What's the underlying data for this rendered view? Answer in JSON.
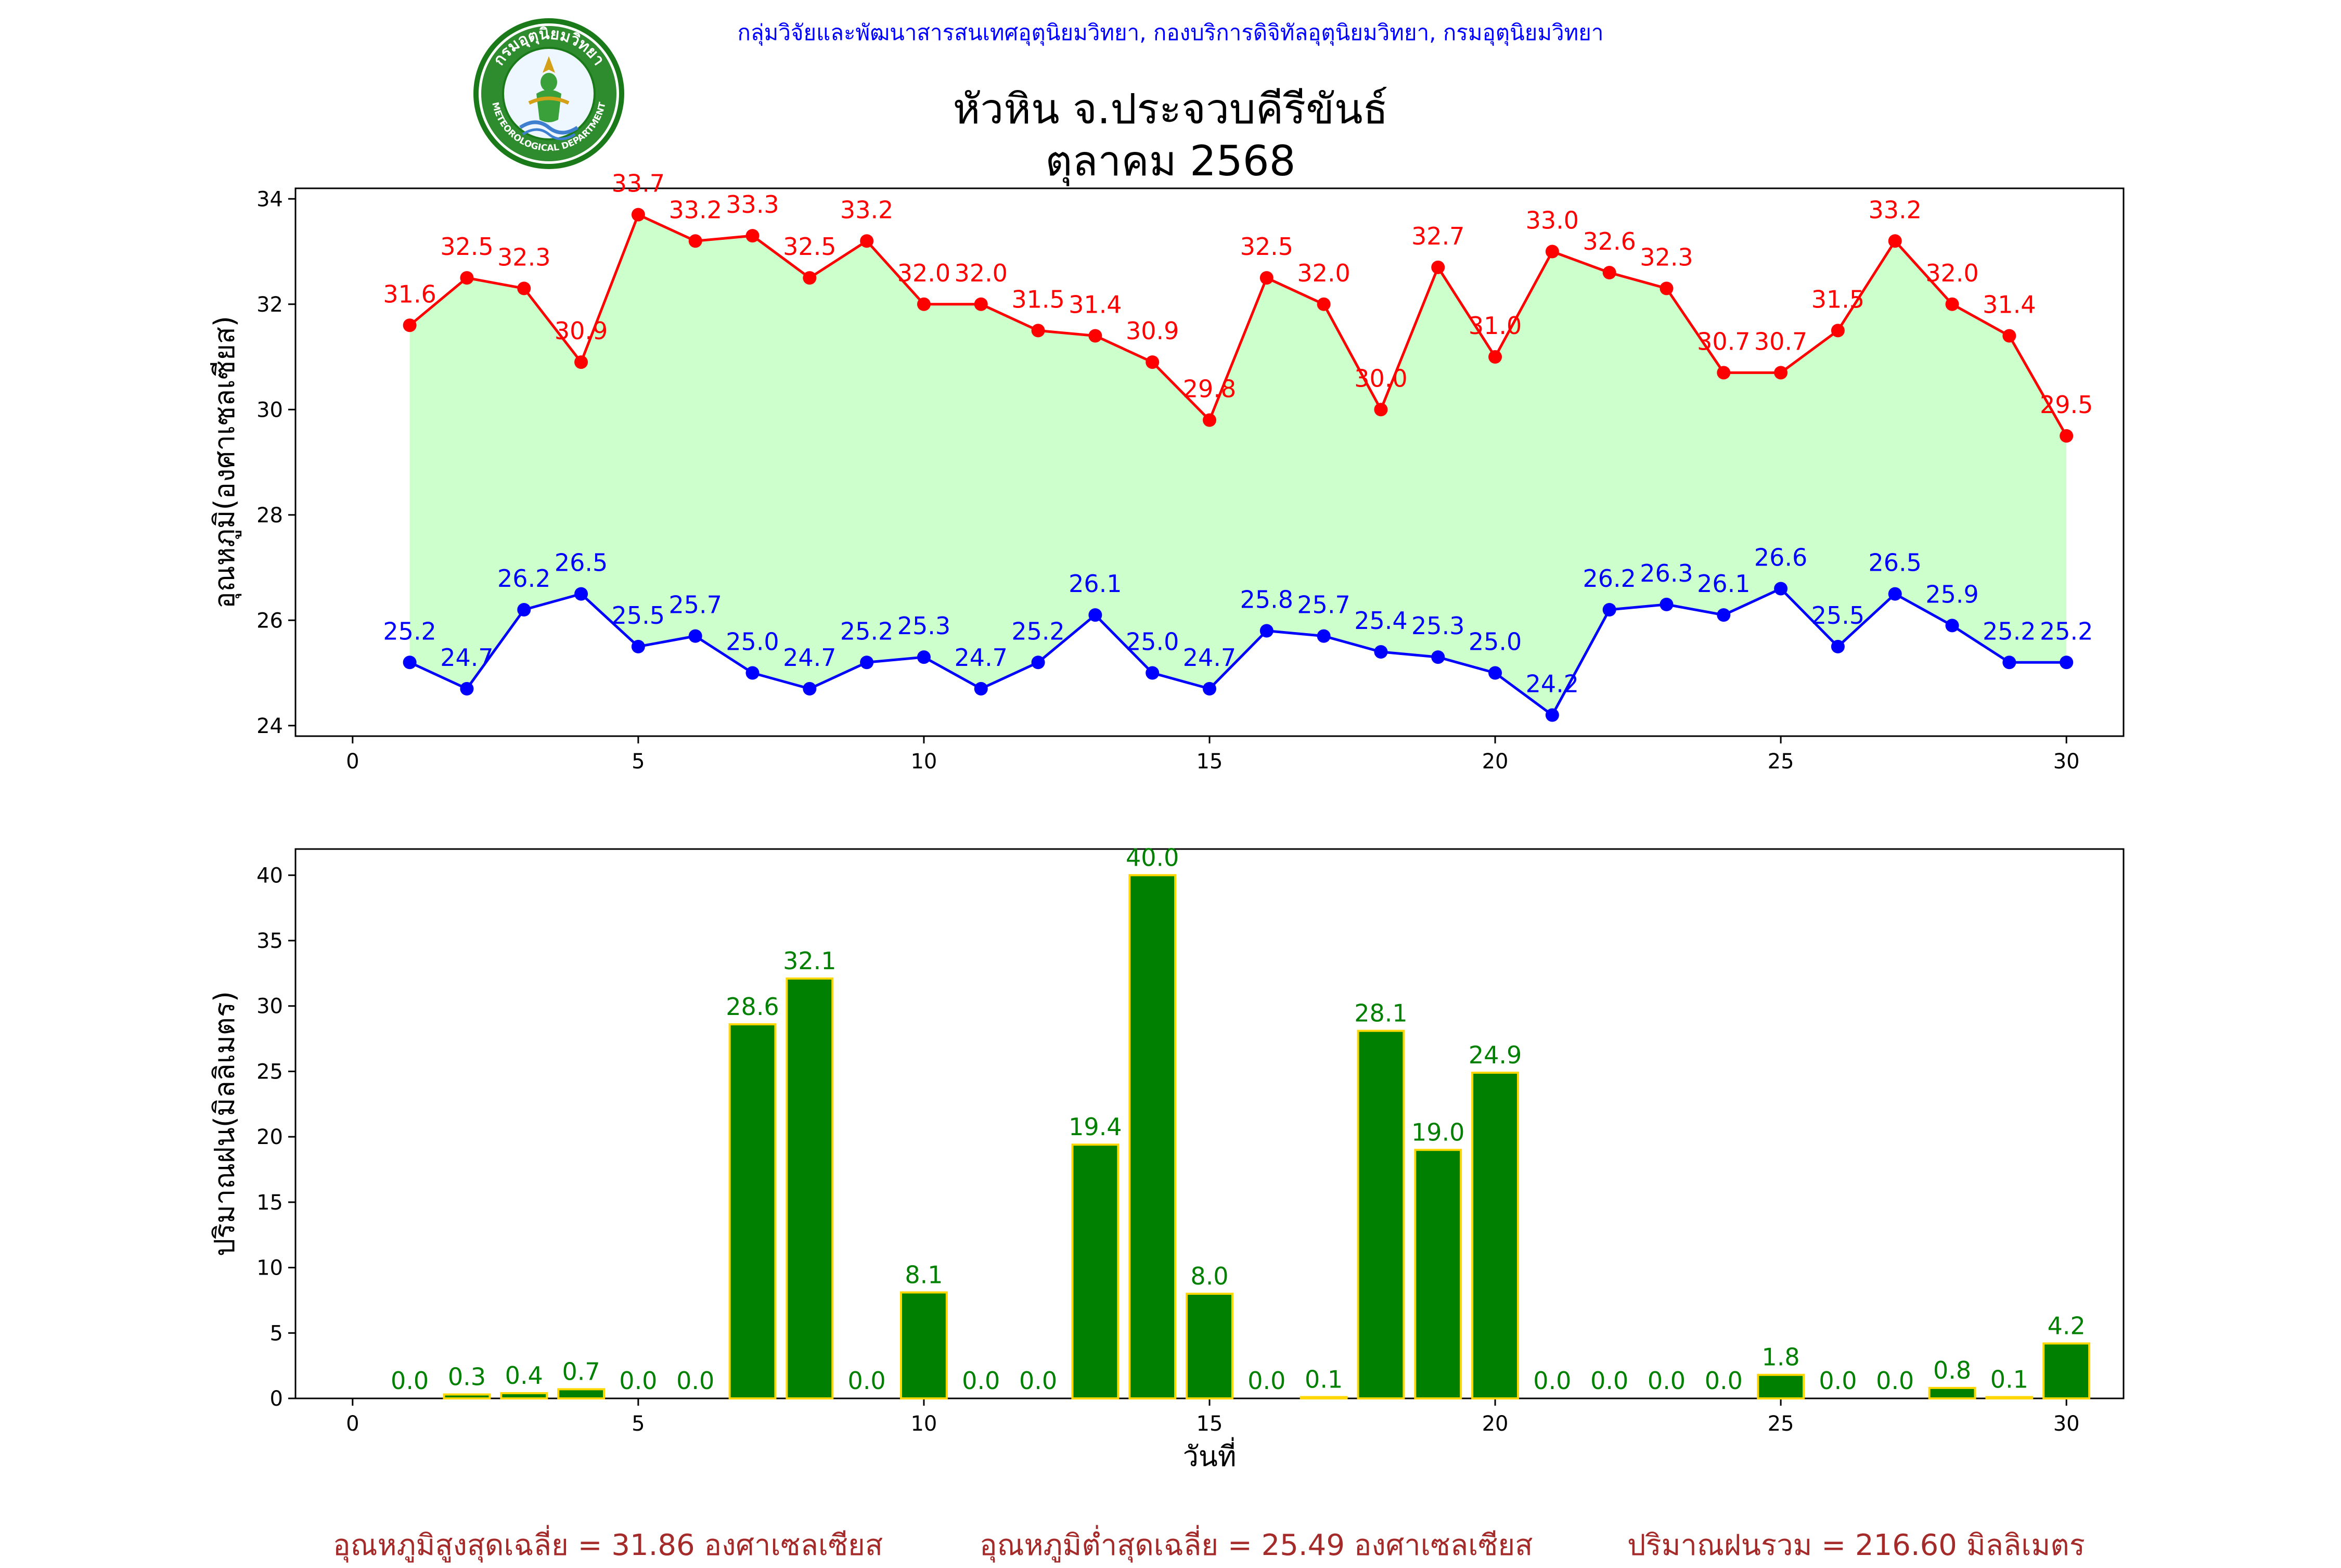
{
  "header": {
    "source": "กลุ่มวิจัยและพัฒนาสารสนเทศอุตุนิยมวิทยา, กองบริการดิจิทัลอุตุนิยมวิทยา, กรมอุตุนิยมวิทยา",
    "title_line1": "หัวหิน จ.ประจวบคีรีขันธ์",
    "title_line2": "ตุลาคม 2568",
    "logo_text_top": "กรมอุตุนิยมวิทยา",
    "logo_text_bottom": "METEOROLOGICAL DEPARTMENT"
  },
  "footer": {
    "avg_max": "อุณหภูมิสูงสุดเฉลี่ย = 31.86 องศาเซลเซียส",
    "avg_min": "อุณหภูมิต่ำสุดเฉลี่ย = 25.49 องศาเซลเซียส",
    "rain_total": "ปริมาณฝนรวม = 216.60 มิลลิเมตร"
  },
  "colors": {
    "max": "#ff0000",
    "min": "#0000ff",
    "band": "#ccffcc",
    "rain": "#008000",
    "rain_edge": "#ffd700",
    "footer": "#a52a2a",
    "source": "#0000ff"
  },
  "chart_data": [
    {
      "type": "line",
      "ylabel": "อุณหภูมิ(องศาเซลเซียส)",
      "xlabel": "",
      "xlim": [
        -1,
        31
      ],
      "ylim": [
        23.8,
        34.2
      ],
      "xticks": [
        0,
        5,
        10,
        15,
        20,
        25,
        30
      ],
      "yticks": [
        24,
        26,
        28,
        30,
        32,
        34
      ],
      "fill_between": true,
      "x": [
        1,
        2,
        3,
        4,
        5,
        6,
        7,
        8,
        9,
        10,
        11,
        12,
        13,
        14,
        15,
        16,
        17,
        18,
        19,
        20,
        21,
        22,
        23,
        24,
        25,
        26,
        27,
        28,
        29,
        30
      ],
      "series": [
        {
          "key": "max",
          "values": [
            31.6,
            32.5,
            32.3,
            30.9,
            33.7,
            33.2,
            33.3,
            32.5,
            33.2,
            32.0,
            32.0,
            31.5,
            31.4,
            30.9,
            29.8,
            32.5,
            32.0,
            30.0,
            32.7,
            31.0,
            33.0,
            32.6,
            32.3,
            30.7,
            30.7,
            31.5,
            33.2,
            32.0,
            31.4,
            29.5
          ]
        },
        {
          "key": "min",
          "values": [
            25.2,
            24.7,
            26.2,
            26.5,
            25.5,
            25.7,
            25.0,
            24.7,
            25.2,
            25.3,
            24.7,
            25.2,
            26.1,
            25.0,
            24.7,
            25.8,
            25.7,
            25.4,
            25.3,
            25.0,
            24.2,
            26.2,
            26.3,
            26.1,
            26.6,
            25.5,
            26.5,
            25.9,
            25.2,
            25.2
          ]
        }
      ]
    },
    {
      "type": "bar",
      "ylabel": "ปริมาณฝน(มิลลิเมตร)",
      "xlabel": "วันที่",
      "xlim": [
        -1,
        31
      ],
      "ylim": [
        0,
        42
      ],
      "xticks": [
        0,
        5,
        10,
        15,
        20,
        25,
        30
      ],
      "yticks": [
        0,
        5,
        10,
        15,
        20,
        25,
        30,
        35,
        40
      ],
      "x": [
        1,
        2,
        3,
        4,
        5,
        6,
        7,
        8,
        9,
        10,
        11,
        12,
        13,
        14,
        15,
        16,
        17,
        18,
        19,
        20,
        21,
        22,
        23,
        24,
        25,
        26,
        27,
        28,
        29,
        30
      ],
      "values": [
        0.0,
        0.3,
        0.4,
        0.7,
        0.0,
        0.0,
        28.6,
        32.1,
        0.0,
        8.1,
        0.0,
        0.0,
        19.4,
        40.0,
        8.0,
        0.0,
        0.1,
        28.1,
        19.0,
        24.9,
        0.0,
        0.0,
        0.0,
        0.0,
        1.8,
        0.0,
        0.0,
        0.8,
        0.1,
        4.2
      ]
    }
  ]
}
